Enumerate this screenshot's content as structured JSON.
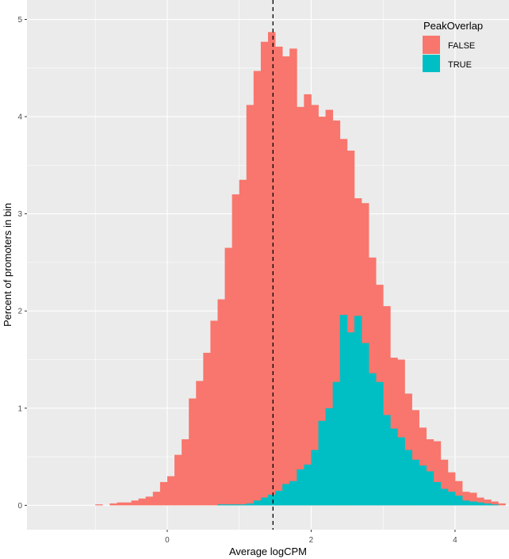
{
  "chart_data": {
    "type": "bar",
    "subtype": "overlaid-histogram",
    "title": "",
    "xlabel": "Average logCPM",
    "ylabel": "Percent of promoters in bin",
    "xlim": [
      -1.95,
      4.75
    ],
    "ylim": [
      -0.25,
      5.2
    ],
    "x_ticks": [
      0,
      2,
      4
    ],
    "y_ticks": [
      0,
      1,
      2,
      3,
      4,
      5
    ],
    "x_tick_labels": [
      "0",
      "2",
      "4"
    ],
    "y_tick_labels": [
      "0",
      "1",
      "2",
      "3",
      "4",
      "5"
    ],
    "grid": true,
    "background": "#ebebeb",
    "legend": {
      "title": "PeakOverlap",
      "placement": "top-right",
      "entries": [
        {
          "label": "FALSE",
          "color": "#f8766d"
        },
        {
          "label": "TRUE",
          "color": "#00bfc4"
        }
      ]
    },
    "vline": {
      "x": 1.47,
      "style": "dashed",
      "color": "#000000"
    },
    "bin_width": 0.1,
    "series": [
      {
        "name": "FALSE",
        "color": "#f8766d",
        "bins": [
          {
            "x": -0.95,
            "y": 0.01
          },
          {
            "x": -0.75,
            "y": 0.02
          },
          {
            "x": -0.65,
            "y": 0.03
          },
          {
            "x": -0.55,
            "y": 0.03
          },
          {
            "x": -0.45,
            "y": 0.05
          },
          {
            "x": -0.35,
            "y": 0.07
          },
          {
            "x": -0.25,
            "y": 0.09
          },
          {
            "x": -0.15,
            "y": 0.14
          },
          {
            "x": -0.05,
            "y": 0.24
          },
          {
            "x": 0.05,
            "y": 0.3
          },
          {
            "x": 0.15,
            "y": 0.52
          },
          {
            "x": 0.25,
            "y": 0.68
          },
          {
            "x": 0.35,
            "y": 1.1
          },
          {
            "x": 0.45,
            "y": 1.28
          },
          {
            "x": 0.55,
            "y": 1.57
          },
          {
            "x": 0.65,
            "y": 1.9
          },
          {
            "x": 0.75,
            "y": 2.12
          },
          {
            "x": 0.85,
            "y": 2.65
          },
          {
            "x": 0.95,
            "y": 3.2
          },
          {
            "x": 1.05,
            "y": 3.35
          },
          {
            "x": 1.15,
            "y": 4.12
          },
          {
            "x": 1.25,
            "y": 4.47
          },
          {
            "x": 1.35,
            "y": 4.77
          },
          {
            "x": 1.45,
            "y": 4.87
          },
          {
            "x": 1.55,
            "y": 4.72
          },
          {
            "x": 1.65,
            "y": 4.62
          },
          {
            "x": 1.75,
            "y": 4.7
          },
          {
            "x": 1.85,
            "y": 4.1
          },
          {
            "x": 1.95,
            "y": 4.23
          },
          {
            "x": 2.05,
            "y": 4.12
          },
          {
            "x": 2.15,
            "y": 4.0
          },
          {
            "x": 2.25,
            "y": 4.07
          },
          {
            "x": 2.35,
            "y": 3.96
          },
          {
            "x": 2.45,
            "y": 3.77
          },
          {
            "x": 2.55,
            "y": 3.65
          },
          {
            "x": 2.65,
            "y": 3.16
          },
          {
            "x": 2.75,
            "y": 3.11
          },
          {
            "x": 2.85,
            "y": 2.55
          },
          {
            "x": 2.95,
            "y": 2.27
          },
          {
            "x": 3.05,
            "y": 2.05
          },
          {
            "x": 3.15,
            "y": 1.52
          },
          {
            "x": 3.25,
            "y": 1.5
          },
          {
            "x": 3.35,
            "y": 1.15
          },
          {
            "x": 3.45,
            "y": 0.98
          },
          {
            "x": 3.55,
            "y": 0.8
          },
          {
            "x": 3.65,
            "y": 0.68
          },
          {
            "x": 3.75,
            "y": 0.66
          },
          {
            "x": 3.85,
            "y": 0.47
          },
          {
            "x": 3.95,
            "y": 0.34
          },
          {
            "x": 4.05,
            "y": 0.25
          },
          {
            "x": 4.15,
            "y": 0.14
          },
          {
            "x": 4.25,
            "y": 0.13
          },
          {
            "x": 4.35,
            "y": 0.08
          },
          {
            "x": 4.45,
            "y": 0.06
          },
          {
            "x": 4.55,
            "y": 0.04
          },
          {
            "x": 4.65,
            "y": 0.02
          }
        ]
      },
      {
        "name": "TRUE",
        "color": "#00bfc4",
        "bins": [
          {
            "x": 0.75,
            "y": 0.01
          },
          {
            "x": 0.85,
            "y": 0.01
          },
          {
            "x": 0.95,
            "y": 0.01
          },
          {
            "x": 1.05,
            "y": 0.01
          },
          {
            "x": 1.15,
            "y": 0.02
          },
          {
            "x": 1.25,
            "y": 0.05
          },
          {
            "x": 1.35,
            "y": 0.08
          },
          {
            "x": 1.45,
            "y": 0.11
          },
          {
            "x": 1.55,
            "y": 0.15
          },
          {
            "x": 1.65,
            "y": 0.22
          },
          {
            "x": 1.75,
            "y": 0.25
          },
          {
            "x": 1.85,
            "y": 0.37
          },
          {
            "x": 1.95,
            "y": 0.42
          },
          {
            "x": 2.05,
            "y": 0.57
          },
          {
            "x": 2.15,
            "y": 0.87
          },
          {
            "x": 2.25,
            "y": 1.0
          },
          {
            "x": 2.35,
            "y": 1.27
          },
          {
            "x": 2.45,
            "y": 1.96
          },
          {
            "x": 2.55,
            "y": 1.78
          },
          {
            "x": 2.65,
            "y": 1.95
          },
          {
            "x": 2.75,
            "y": 1.67
          },
          {
            "x": 2.85,
            "y": 1.36
          },
          {
            "x": 2.95,
            "y": 1.27
          },
          {
            "x": 3.05,
            "y": 0.93
          },
          {
            "x": 3.15,
            "y": 0.79
          },
          {
            "x": 3.25,
            "y": 0.7
          },
          {
            "x": 3.35,
            "y": 0.57
          },
          {
            "x": 3.45,
            "y": 0.47
          },
          {
            "x": 3.55,
            "y": 0.41
          },
          {
            "x": 3.65,
            "y": 0.35
          },
          {
            "x": 3.75,
            "y": 0.24
          },
          {
            "x": 3.85,
            "y": 0.17
          },
          {
            "x": 3.95,
            "y": 0.14
          },
          {
            "x": 4.05,
            "y": 0.1
          },
          {
            "x": 4.15,
            "y": 0.05
          },
          {
            "x": 4.25,
            "y": 0.04
          },
          {
            "x": 4.35,
            "y": 0.03
          },
          {
            "x": 4.45,
            "y": 0.02
          },
          {
            "x": 4.55,
            "y": 0.01
          }
        ]
      }
    ]
  }
}
